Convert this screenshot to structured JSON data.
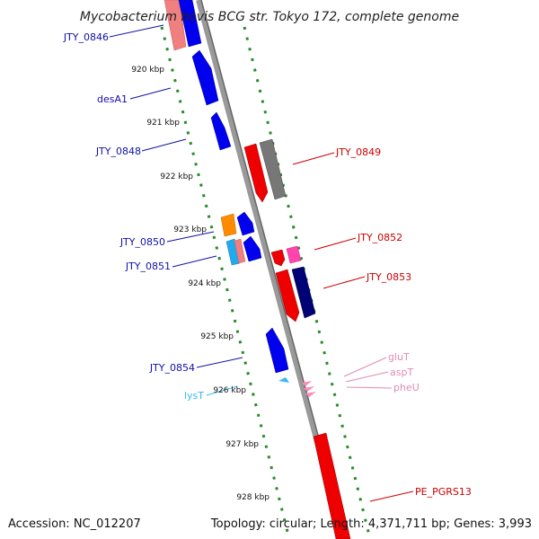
{
  "title": "Mycobacterium bovis BCG str. Tokyo 172, complete genome",
  "footer": {
    "accession": "Accession: NC_012207",
    "topology": "Topology: circular; Length: 4,371,711 bp; Genes: 3,993"
  },
  "colors": {
    "backbone": "#888888",
    "ruler": "#2a8a2a",
    "gene_left_label": "#1010aa",
    "gene_right_label": "#cc0000",
    "rna_label": "#e08cb0",
    "trna_label": "#33bbee",
    "blue_gene": "#0000ee",
    "pink_gene": "#f08080",
    "red_gene": "#ee0000",
    "gray_gene": "#777777",
    "navy_gene": "#000077",
    "orange_gene": "#ff8c00",
    "cyan_gene": "#22aaee",
    "magenta_gene": "#ff44aa",
    "trna_marker": "#ff88bb"
  },
  "ticks": [
    {
      "label": "920 kbp"
    },
    {
      "label": "921 kbp"
    },
    {
      "label": "922 kbp"
    },
    {
      "label": "923 kbp"
    },
    {
      "label": "924 kbp"
    },
    {
      "label": "925 kbp"
    },
    {
      "label": "926 kbp"
    },
    {
      "label": "927 kbp"
    },
    {
      "label": "928 kbp"
    }
  ],
  "left_labels": [
    {
      "label": "JTY_0846"
    },
    {
      "label": "desA1"
    },
    {
      "label": "JTY_0848"
    },
    {
      "label": "JTY_0850"
    },
    {
      "label": "JTY_0851"
    },
    {
      "label": "JTY_0854"
    },
    {
      "label": "lysT"
    }
  ],
  "right_labels": [
    {
      "label": "JTY_0849"
    },
    {
      "label": "JTY_0852"
    },
    {
      "label": "JTY_0853"
    },
    {
      "label": "gluT"
    },
    {
      "label": "aspT"
    },
    {
      "label": "pheU"
    },
    {
      "label": "PE_PGRS13"
    }
  ]
}
